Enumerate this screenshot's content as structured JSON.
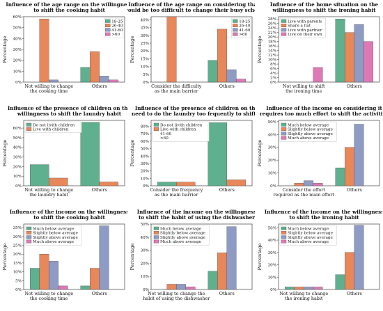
{
  "colors": {
    "c18_25": "#5fb08f",
    "c26_40": "#e8875a",
    "c41_60": "#8e9bc4",
    "c60": "#de79b5",
    "cWithParents": "#5fb08f",
    "cFlat": "#e8875a",
    "cPartner": "#8e9bc4",
    "cOwn": "#de79b5"
  },
  "chart_data": [
    {
      "type": "bar",
      "title": [
        "Influence of the age range on the willingness",
        "to shift the cooking habit"
      ],
      "ylabel": "Percentage",
      "categories": [
        [
          "Not willing to change",
          "the cooking time"
        ],
        [
          "Others"
        ]
      ],
      "ylim": [
        0,
        60
      ],
      "yticks": [
        0,
        10,
        20,
        30,
        40,
        50,
        60
      ],
      "ytick_labels": [
        "0%",
        "10%",
        "20%",
        "30%",
        "40%",
        "50%",
        "60%"
      ],
      "legend_position": "top-right",
      "series": [
        {
          "name": "18-25",
          "color": "#5fb08f",
          "values": [
            0,
            13.5
          ]
        },
        {
          "name": "26-40",
          "color": "#e8875a",
          "values": [
            58,
            28
          ]
        },
        {
          "name": "41-60",
          "color": "#8e9bc4",
          "values": [
            2,
            5.5
          ]
        },
        {
          "name": ">60",
          "color": "#de79b5",
          "values": [
            0,
            2
          ]
        }
      ]
    },
    {
      "type": "bar",
      "title": [
        "Influence of the age range on considering that it",
        "would be too difficult to change their busy schedule"
      ],
      "ylabel": "Percentage",
      "categories": [
        [
          "Consider the difficulty",
          "as the main barrier"
        ],
        [
          "Others"
        ]
      ],
      "ylim": [
        0,
        42
      ],
      "yticks": [
        0,
        5,
        10,
        15,
        20,
        25,
        30,
        35,
        40
      ],
      "ytick_labels": [
        "0%",
        "5%",
        "10%",
        "15%",
        "20%",
        "25%",
        "30%",
        "35%",
        "40%"
      ],
      "legend_position": "top-right",
      "series": [
        {
          "name": "18-25",
          "color": "#5fb08f",
          "values": [
            0,
            14
          ]
        },
        {
          "name": "26-40",
          "color": "#e8875a",
          "values": [
            42,
            34
          ]
        },
        {
          "name": "41-60",
          "color": "#8e9bc4",
          "values": [
            0,
            8
          ]
        },
        {
          "name": ">60",
          "color": "#de79b5",
          "values": [
            0,
            2
          ]
        }
      ]
    },
    {
      "type": "bar",
      "title": [
        "Influence of the home situation on the",
        "willingness to shift the ironing habit"
      ],
      "ylabel": "Percentage",
      "categories": [
        [
          "Not willing to shift",
          "the ironing time"
        ],
        [
          "Others"
        ]
      ],
      "ylim": [
        0,
        29
      ],
      "yticks": [
        0,
        2,
        4,
        6,
        8,
        10,
        12,
        14,
        16,
        18,
        20,
        22,
        24,
        26,
        28
      ],
      "ytick_labels": [
        "0%",
        "2%",
        "4%",
        "6%",
        "8%",
        "10%",
        "12%",
        "14%",
        "16%",
        "18%",
        "20%",
        "22%",
        "24%",
        "26%",
        "28%"
      ],
      "legend_position": "top-left",
      "series": [
        {
          "name": "Live with parents",
          "color": "#5fb08f",
          "values": [
            0,
            28
          ]
        },
        {
          "name": "Share a flat",
          "color": "#e8875a",
          "values": [
            0,
            22
          ]
        },
        {
          "name": "Live with partner",
          "color": "#8e9bc4",
          "values": [
            0,
            25.5
          ]
        },
        {
          "name": "Live on their own",
          "color": "#de79b5",
          "values": [
            6.5,
            18
          ]
        }
      ]
    },
    {
      "type": "bar",
      "title": [
        "Influence of the presence of children on the",
        "willingness to shift the laundry habit"
      ],
      "ylabel": "Percentage",
      "categories": [
        [
          "Not willing to change",
          "the laundry habit"
        ],
        [
          "Others"
        ]
      ],
      "ylim": [
        0,
        68
      ],
      "yticks": [
        0,
        10,
        20,
        30,
        40,
        50,
        60
      ],
      "ytick_labels": [
        "0%",
        "10%",
        "20%",
        "30%",
        "40%",
        "50%",
        "60%"
      ],
      "legend_position": "top-left",
      "series": [
        {
          "name": "Do not livith children",
          "color": "#5fb08f",
          "values": [
            22,
            66
          ]
        },
        {
          "name": "Live with children",
          "color": "#e8875a",
          "values": [
            8,
            4
          ]
        }
      ]
    },
    {
      "type": "bar",
      "title": [
        "Influence of the presence of children on the",
        "need to do the laundry too fequently to shift it"
      ],
      "ylabel": "Percentage",
      "categories": [
        [
          "Consider the frequency",
          "as the main barrier"
        ],
        [
          "Others"
        ]
      ],
      "ylim": [
        0,
        88
      ],
      "yticks": [
        0,
        10,
        20,
        30,
        40,
        50,
        60,
        70,
        80
      ],
      "ytick_labels": [
        "0%",
        "10%",
        "20%",
        "30%",
        "40%",
        "50%",
        "60%",
        "70%",
        "80%"
      ],
      "legend_position": "top-left",
      "series": [
        {
          "name": "Do not livith children",
          "color": "#5fb08f",
          "values": [
            5,
            85
          ]
        },
        {
          "name": "Live with children",
          "color": "#e8875a",
          "values": [
            5,
            8
          ]
        }
      ],
      "extra_legend": [
        "41-60",
        ">60"
      ]
    },
    {
      "type": "bar",
      "title": [
        "Influence of the income on considering it",
        "requires too much effort to shift the activities"
      ],
      "ylabel": "Percentage",
      "categories": [
        [
          "Consider the effort",
          "required as the main effort"
        ],
        [
          "Others"
        ]
      ],
      "ylim": [
        0,
        51
      ],
      "yticks": [
        0,
        10,
        20,
        30,
        40,
        50
      ],
      "ytick_labels": [
        "0%",
        "10%",
        "20%",
        "30%",
        "40%",
        "50%"
      ],
      "legend_position": "top-left",
      "series": [
        {
          "name": "Much below average",
          "color": "#5fb08f",
          "values": [
            0,
            14
          ]
        },
        {
          "name": "Slightly below average",
          "color": "#e8875a",
          "values": [
            2,
            30
          ]
        },
        {
          "name": "Slightly above average",
          "color": "#8e9bc4",
          "values": [
            4,
            48
          ]
        },
        {
          "name": "Much above average",
          "color": "#de79b5",
          "values": [
            2,
            0
          ]
        }
      ]
    },
    {
      "type": "bar",
      "title": [
        "Influence of the income on the willingness",
        "to shift the cooking habit"
      ],
      "ylabel": "Percentage",
      "categories": [
        [
          "Not willing to change",
          "the cooking time"
        ],
        [
          "Others"
        ]
      ],
      "ylim": [
        0,
        37
      ],
      "yticks": [
        0,
        5,
        10,
        15,
        20,
        25,
        30,
        35
      ],
      "ytick_labels": [
        "0%",
        "5%",
        "10%",
        "15%",
        "20%",
        "25%",
        "30%",
        "35%"
      ],
      "legend_position": "top-left",
      "series": [
        {
          "name": "Much below average",
          "color": "#5fb08f",
          "values": [
            12,
            2
          ]
        },
        {
          "name": "Slightly below average",
          "color": "#e8875a",
          "values": [
            20,
            12
          ]
        },
        {
          "name": "Slightly above average",
          "color": "#8e9bc4",
          "values": [
            16,
            36
          ]
        },
        {
          "name": "Much above average",
          "color": "#de79b5",
          "values": [
            2,
            0
          ]
        }
      ]
    },
    {
      "type": "bar",
      "title": [
        "Influence of the income on the willingness",
        "to shift the habit of using the dishwasher"
      ],
      "ylabel": "Percentage",
      "categories": [
        [
          "Not willing to change the",
          "habit of using the dishwasher"
        ],
        [
          "Others"
        ]
      ],
      "ylim": [
        0,
        50
      ],
      "yticks": [
        0,
        10,
        20,
        30,
        40,
        50
      ],
      "ytick_labels": [
        "0%",
        "10%",
        "20%",
        "30%",
        "40%",
        "50%"
      ],
      "legend_position": "top-left",
      "series": [
        {
          "name": "Much below average",
          "color": "#5fb08f",
          "values": [
            0,
            14
          ]
        },
        {
          "name": "Slightly below average",
          "color": "#e8875a",
          "values": [
            4,
            28
          ]
        },
        {
          "name": "Slightly above average",
          "color": "#8e9bc4",
          "values": [
            4,
            48
          ]
        },
        {
          "name": "Much above average",
          "color": "#de79b5",
          "values": [
            2,
            0
          ]
        }
      ]
    },
    {
      "type": "bar",
      "title": [
        "Influence of the income on the willingness",
        "to shift the ironing habit"
      ],
      "ylabel": "Percentage",
      "categories": [
        [
          "Not willing to change",
          "the ironing habit"
        ],
        [
          "Others"
        ]
      ],
      "ylim": [
        0,
        53
      ],
      "yticks": [
        0,
        10,
        20,
        30,
        40,
        50
      ],
      "ytick_labels": [
        "0%",
        "10%",
        "20%",
        "30%",
        "40%",
        "50%"
      ],
      "legend_position": "top-left",
      "series": [
        {
          "name": "Much below average",
          "color": "#5fb08f",
          "values": [
            2,
            12
          ]
        },
        {
          "name": "Slightly below average",
          "color": "#e8875a",
          "values": [
            2,
            30
          ]
        },
        {
          "name": "Slightly above average",
          "color": "#8e9bc4",
          "values": [
            2,
            52
          ]
        },
        {
          "name": "Much above average",
          "color": "#de79b5",
          "values": [
            2,
            0
          ]
        }
      ]
    }
  ]
}
